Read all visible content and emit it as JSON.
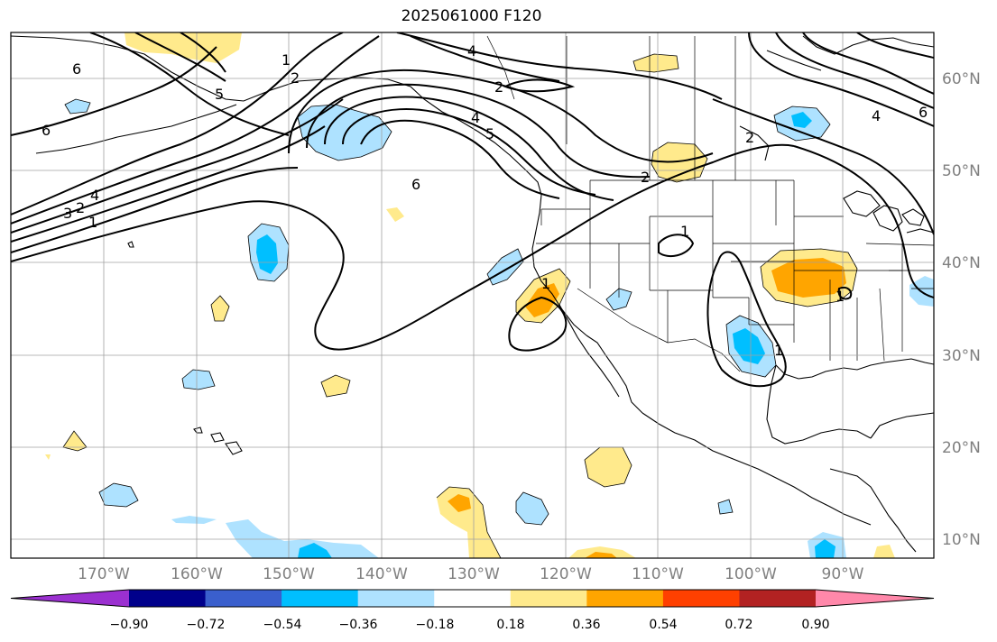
{
  "title": "2025061000 F120",
  "lon_ticks": [
    "170°W",
    "160°W",
    "150°W",
    "140°W",
    "130°W",
    "120°W",
    "110°W",
    "100°W",
    "90°W"
  ],
  "lat_ticks": [
    "60°N",
    "50°N",
    "40°N",
    "30°N",
    "20°N",
    "10°N"
  ],
  "colorbar": {
    "ticks": [
      "−0.90",
      "−0.72",
      "−0.54",
      "−0.36",
      "−0.18",
      "0.18",
      "0.36",
      "0.54",
      "0.72",
      "0.90"
    ],
    "colors": [
      "#9b30d0",
      "#00008b",
      "#3a5fcd",
      "#00bfff",
      "#aee2ff",
      "#ffffff",
      "#ffea8c",
      "#ffa500",
      "#ff4000",
      "#b22222",
      "#ff88aa"
    ]
  },
  "contour_labels": [
    "6",
    "1",
    "4",
    "2",
    "4",
    "5",
    "6",
    "2",
    "4",
    "6",
    "2",
    "6",
    "1",
    "2",
    "3",
    "4",
    "5",
    "1",
    "1",
    "1",
    "1",
    "2"
  ],
  "shading_colors": {
    "light_blue": "#aee2ff",
    "blue": "#00bfff",
    "light_yellow": "#ffea8c",
    "orange": "#ffa500"
  }
}
